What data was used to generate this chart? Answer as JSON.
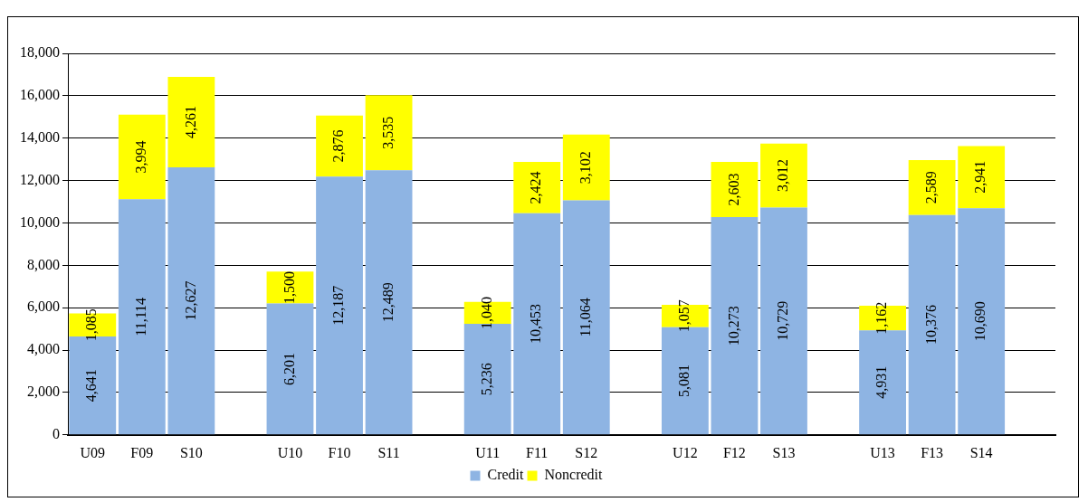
{
  "chart_data": {
    "type": "bar",
    "stacked": true,
    "categories": [
      "U09",
      "F09",
      "S10",
      null,
      "U10",
      "F10",
      "S11",
      null,
      "U11",
      "F11",
      "S12",
      null,
      "U12",
      "F12",
      "S13",
      null,
      "U13",
      "F13",
      "S14",
      null
    ],
    "series": [
      {
        "name": "Credit",
        "color": "#8eb4e3",
        "values": [
          4641,
          11114,
          12627,
          null,
          6201,
          12187,
          12489,
          null,
          5236,
          10453,
          11064,
          null,
          5081,
          10273,
          10729,
          null,
          4931,
          10376,
          10690,
          null
        ],
        "value_labels": [
          "4,641",
          "11,114",
          "12,627",
          null,
          "6,201",
          "12,187",
          "12,489",
          null,
          "5,236",
          "10,453",
          "11,064",
          null,
          "5,081",
          "10,273",
          "10,729",
          null,
          "4,931",
          "10,376",
          "10,690",
          null
        ]
      },
      {
        "name": "Noncredit",
        "color": "#ffff00",
        "values": [
          1085,
          3994,
          4261,
          null,
          1500,
          2876,
          3535,
          null,
          1040,
          2424,
          3102,
          null,
          1057,
          2603,
          3012,
          null,
          1162,
          2589,
          2941,
          null
        ],
        "value_labels": [
          "1,085",
          "3,994",
          "4,261",
          null,
          "1,500",
          "2,876",
          "3,535",
          null,
          "1,040",
          "2,424",
          "3,102",
          null,
          "1,057",
          "2,603",
          "3,012",
          null,
          "1,162",
          "2,589",
          "2,941",
          null
        ]
      }
    ],
    "ylim": [
      0,
      18000
    ],
    "yticks": [
      0,
      {
        "value": 2000,
        "label": "2,000"
      },
      {
        "value": 4000,
        "label": "4,000"
      },
      {
        "value": 6000,
        "label": "6,000"
      },
      {
        "value": 8000,
        "label": "8,000"
      },
      {
        "value": 10000,
        "label": "10,000"
      },
      {
        "value": 12000,
        "label": "12,000"
      },
      {
        "value": 14000,
        "label": "14,000"
      },
      {
        "value": 16000,
        "label": "16,000"
      },
      {
        "value": 18000,
        "label": "18,000"
      }
    ],
    "grid": "y",
    "legend": "bottom"
  }
}
